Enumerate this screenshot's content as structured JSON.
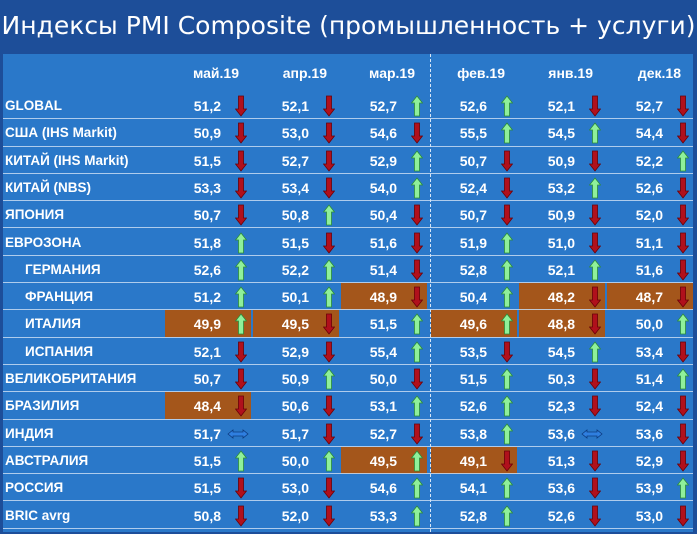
{
  "title": "Индексы PMI Composite (промышленность + услуги)",
  "chart_data": {
    "type": "table",
    "columns": [
      "май.19",
      "апр.19",
      "мар.19",
      "фев.19",
      "янв.19",
      "дек.18"
    ],
    "rows": [
      {
        "label": "GLOBAL",
        "indent": false,
        "values": [
          "51,2",
          "52,1",
          "52,7",
          "52,6",
          "52,1",
          "52,7"
        ],
        "arrows": [
          "down",
          "down",
          "up",
          "up",
          "down",
          "down"
        ],
        "highlight": [
          false,
          false,
          false,
          false,
          false,
          false
        ]
      },
      {
        "label": "США (IHS Markit)",
        "indent": false,
        "values": [
          "50,9",
          "53,0",
          "54,6",
          "55,5",
          "54,5",
          "54,4"
        ],
        "arrows": [
          "down",
          "down",
          "down",
          "up",
          "up",
          "down"
        ],
        "highlight": [
          false,
          false,
          false,
          false,
          false,
          false
        ]
      },
      {
        "label": "КИТАЙ (IHS Markit)",
        "indent": false,
        "values": [
          "51,5",
          "52,7",
          "52,9",
          "50,7",
          "50,9",
          "52,2"
        ],
        "arrows": [
          "down",
          "down",
          "up",
          "down",
          "down",
          "up"
        ],
        "highlight": [
          false,
          false,
          false,
          false,
          false,
          false
        ]
      },
      {
        "label": "КИТАЙ (NBS)",
        "indent": false,
        "values": [
          "53,3",
          "53,4",
          "54,0",
          "52,4",
          "53,2",
          "52,6"
        ],
        "arrows": [
          "down",
          "down",
          "up",
          "down",
          "up",
          "down"
        ],
        "highlight": [
          false,
          false,
          false,
          false,
          false,
          false
        ]
      },
      {
        "label": "ЯПОНИЯ",
        "indent": false,
        "values": [
          "50,7",
          "50,8",
          "50,4",
          "50,7",
          "50,9",
          "52,0"
        ],
        "arrows": [
          "down",
          "up",
          "down",
          "down",
          "down",
          "down"
        ],
        "highlight": [
          false,
          false,
          false,
          false,
          false,
          false
        ]
      },
      {
        "label": "ЕВРОЗОНА",
        "indent": false,
        "values": [
          "51,8",
          "51,5",
          "51,6",
          "51,9",
          "51,0",
          "51,1"
        ],
        "arrows": [
          "up",
          "down",
          "down",
          "up",
          "down",
          "down"
        ],
        "highlight": [
          false,
          false,
          false,
          false,
          false,
          false
        ]
      },
      {
        "label": "ГЕРМАНИЯ",
        "indent": true,
        "values": [
          "52,6",
          "52,2",
          "51,4",
          "52,8",
          "52,1",
          "51,6"
        ],
        "arrows": [
          "up",
          "up",
          "down",
          "up",
          "up",
          "down"
        ],
        "highlight": [
          false,
          false,
          false,
          false,
          false,
          false
        ]
      },
      {
        "label": "ФРАНЦИЯ",
        "indent": true,
        "values": [
          "51,2",
          "50,1",
          "48,9",
          "50,4",
          "48,2",
          "48,7"
        ],
        "arrows": [
          "up",
          "up",
          "down",
          "up",
          "down",
          "down"
        ],
        "highlight": [
          false,
          false,
          true,
          false,
          true,
          true
        ]
      },
      {
        "label": "ИТАЛИЯ",
        "indent": true,
        "values": [
          "49,9",
          "49,5",
          "51,5",
          "49,6",
          "48,8",
          "50,0"
        ],
        "arrows": [
          "up",
          "down",
          "up",
          "up",
          "down",
          "up"
        ],
        "highlight": [
          true,
          true,
          false,
          true,
          true,
          false
        ]
      },
      {
        "label": "ИСПАНИЯ",
        "indent": true,
        "values": [
          "52,1",
          "52,9",
          "55,4",
          "53,5",
          "54,5",
          "53,4"
        ],
        "arrows": [
          "down",
          "down",
          "up",
          "down",
          "up",
          "down"
        ],
        "highlight": [
          false,
          false,
          false,
          false,
          false,
          false
        ]
      },
      {
        "label": "ВЕЛИКОБРИТАНИЯ",
        "indent": false,
        "values": [
          "50,7",
          "50,9",
          "50,0",
          "51,5",
          "50,3",
          "51,4"
        ],
        "arrows": [
          "down",
          "up",
          "down",
          "up",
          "down",
          "up"
        ],
        "highlight": [
          false,
          false,
          false,
          false,
          false,
          false
        ]
      },
      {
        "label": "БРАЗИЛИЯ",
        "indent": false,
        "values": [
          "48,4",
          "50,6",
          "53,1",
          "52,6",
          "52,3",
          "52,4"
        ],
        "arrows": [
          "down",
          "down",
          "up",
          "up",
          "down",
          "down"
        ],
        "highlight": [
          true,
          false,
          false,
          false,
          false,
          false
        ]
      },
      {
        "label": "ИНДИЯ",
        "indent": false,
        "values": [
          "51,7",
          "51,7",
          "52,7",
          "53,8",
          "53,6",
          "53,6"
        ],
        "arrows": [
          "flat",
          "down",
          "down",
          "up",
          "flat",
          "down"
        ],
        "highlight": [
          false,
          false,
          false,
          false,
          false,
          false
        ]
      },
      {
        "label": "АВСТРАЛИЯ",
        "indent": false,
        "values": [
          "51,5",
          "50,0",
          "49,5",
          "49,1",
          "51,3",
          "52,9"
        ],
        "arrows": [
          "up",
          "up",
          "up",
          "down",
          "down",
          "down"
        ],
        "highlight": [
          false,
          false,
          true,
          true,
          false,
          false
        ]
      },
      {
        "label": "РОССИЯ",
        "indent": false,
        "values": [
          "51,5",
          "53,0",
          "54,6",
          "54,1",
          "53,6",
          "53,9"
        ],
        "arrows": [
          "down",
          "down",
          "up",
          "up",
          "down",
          "up"
        ],
        "highlight": [
          false,
          false,
          false,
          false,
          false,
          false
        ]
      },
      {
        "label": "BRIC avrg",
        "indent": false,
        "values": [
          "50,8",
          "52,0",
          "53,3",
          "52,8",
          "52,6",
          "53,0"
        ],
        "arrows": [
          "down",
          "down",
          "up",
          "up",
          "down",
          "down"
        ],
        "highlight": [
          false,
          false,
          false,
          false,
          false,
          false
        ]
      }
    ]
  },
  "colors": {
    "background": "#1d4e99",
    "panel": "#2a78c9",
    "highlight": "#a4561b",
    "arrow_up": "#8ff09a",
    "arrow_down": "#b0101c",
    "arrow_flat": "#2f7fe0"
  }
}
